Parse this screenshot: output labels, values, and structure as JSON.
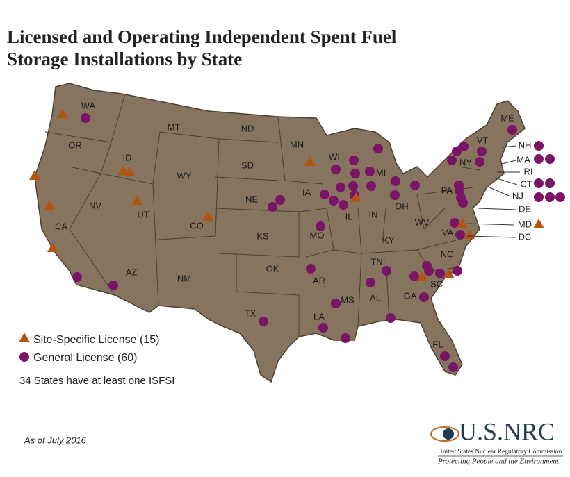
{
  "header": {
    "title_lines": [
      "Licensed and Operating Independent Spent Fuel",
      "Storage Installations by State"
    ]
  },
  "states": [
    {
      "label": "WA"
    },
    {
      "label": "OR"
    },
    {
      "label": "CA"
    },
    {
      "label": "NV"
    },
    {
      "label": "ID"
    },
    {
      "label": "MT"
    },
    {
      "label": "WY"
    },
    {
      "label": "UT"
    },
    {
      "label": "CO"
    },
    {
      "label": "AZ"
    },
    {
      "label": "NM"
    },
    {
      "label": "ND"
    },
    {
      "label": "SD"
    },
    {
      "label": "NE"
    },
    {
      "label": "KS"
    },
    {
      "label": "OK"
    },
    {
      "label": "TX"
    },
    {
      "label": "MN"
    },
    {
      "label": "IA"
    },
    {
      "label": "MO"
    },
    {
      "label": "AR"
    },
    {
      "label": "LA"
    },
    {
      "label": "WI"
    },
    {
      "label": "IL"
    },
    {
      "label": "MS"
    },
    {
      "label": "MI"
    },
    {
      "label": "IN"
    },
    {
      "label": "KY"
    },
    {
      "label": "TN"
    },
    {
      "label": "AL"
    },
    {
      "label": "OH"
    },
    {
      "label": "GA"
    },
    {
      "label": "FL"
    },
    {
      "label": "SC"
    },
    {
      "label": "NC"
    },
    {
      "label": "VA"
    },
    {
      "label": "WV"
    },
    {
      "label": "PA"
    },
    {
      "label": "NY"
    },
    {
      "label": "VT"
    },
    {
      "label": "ME"
    },
    {
      "label": "NH"
    },
    {
      "label": "MA"
    },
    {
      "label": "RI"
    },
    {
      "label": "CT"
    },
    {
      "label": "NJ"
    },
    {
      "label": "DE"
    },
    {
      "label": "MD"
    },
    {
      "label": "DC"
    }
  ],
  "legend": {
    "items": [
      "Site-Specific License (15)",
      "General License (60)"
    ],
    "note": "34 States have at least one ISFSI"
  },
  "footer": {
    "date": "As of July 2016",
    "logo": "U.S.NRC",
    "agency": "United States Nuclear Regulatory Commission",
    "motto": "Protecting People and the Environment"
  }
}
